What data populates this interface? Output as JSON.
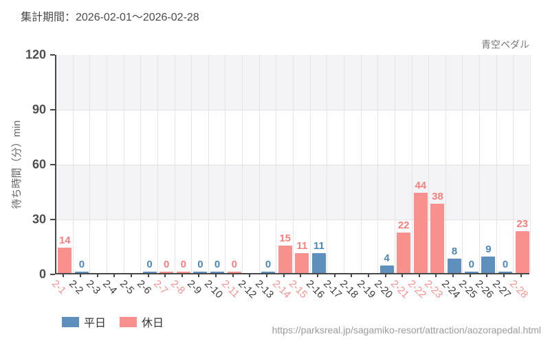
{
  "title": "集計期間：2026-02-01～2026-02-28",
  "attraction": "青空ペダル",
  "url_watermark": "https://parksreal.jp/sagamiko-resort/attraction/aozorapedal.html",
  "legend": {
    "weekday": "平日",
    "holiday": "休日"
  },
  "chart_data": {
    "type": "bar",
    "title": "",
    "ylabel": "待ち時間（分）min",
    "xlabel": "",
    "ylim": [
      0,
      120
    ],
    "yticks": [
      0,
      30,
      60,
      90,
      120
    ],
    "grid": true,
    "legend_position": "bottom-left",
    "colors": {
      "weekday_bar": "#5E8FBD",
      "holiday_bar": "#F8918E",
      "weekday_text": "#4D86B8",
      "holiday_text": "#F4807D",
      "xlabel_weekday": "#3b3b3b",
      "xlabel_holiday": "#F8928F"
    },
    "days": [
      {
        "label": "2-1",
        "value": 14,
        "type": "holiday"
      },
      {
        "label": "2-2",
        "value": 0,
        "type": "weekday"
      },
      {
        "label": "2-3",
        "value": null,
        "type": "weekday"
      },
      {
        "label": "2-4",
        "value": null,
        "type": "weekday"
      },
      {
        "label": "2-5",
        "value": null,
        "type": "weekday"
      },
      {
        "label": "2-6",
        "value": 0,
        "type": "weekday"
      },
      {
        "label": "2-7",
        "value": 0,
        "type": "holiday"
      },
      {
        "label": "2-8",
        "value": 0,
        "type": "holiday"
      },
      {
        "label": "2-9",
        "value": 0,
        "type": "weekday"
      },
      {
        "label": "2-10",
        "value": 0,
        "type": "weekday"
      },
      {
        "label": "2-11",
        "value": 0,
        "type": "holiday"
      },
      {
        "label": "2-12",
        "value": null,
        "type": "weekday"
      },
      {
        "label": "2-13",
        "value": 0,
        "type": "weekday"
      },
      {
        "label": "2-14",
        "value": 15,
        "type": "holiday"
      },
      {
        "label": "2-15",
        "value": 11,
        "type": "holiday"
      },
      {
        "label": "2-16",
        "value": 11,
        "type": "weekday"
      },
      {
        "label": "2-17",
        "value": null,
        "type": "weekday"
      },
      {
        "label": "2-18",
        "value": null,
        "type": "weekday"
      },
      {
        "label": "2-19",
        "value": null,
        "type": "weekday"
      },
      {
        "label": "2-20",
        "value": 4,
        "type": "weekday"
      },
      {
        "label": "2-21",
        "value": 22,
        "type": "holiday"
      },
      {
        "label": "2-22",
        "value": 44,
        "type": "holiday"
      },
      {
        "label": "2-23",
        "value": 38,
        "type": "holiday"
      },
      {
        "label": "2-24",
        "value": 8,
        "type": "weekday"
      },
      {
        "label": "2-25",
        "value": 0,
        "type": "weekday"
      },
      {
        "label": "2-26",
        "value": 9,
        "type": "weekday"
      },
      {
        "label": "2-27",
        "value": 0,
        "type": "weekday"
      },
      {
        "label": "2-28",
        "value": 23,
        "type": "holiday"
      }
    ]
  }
}
